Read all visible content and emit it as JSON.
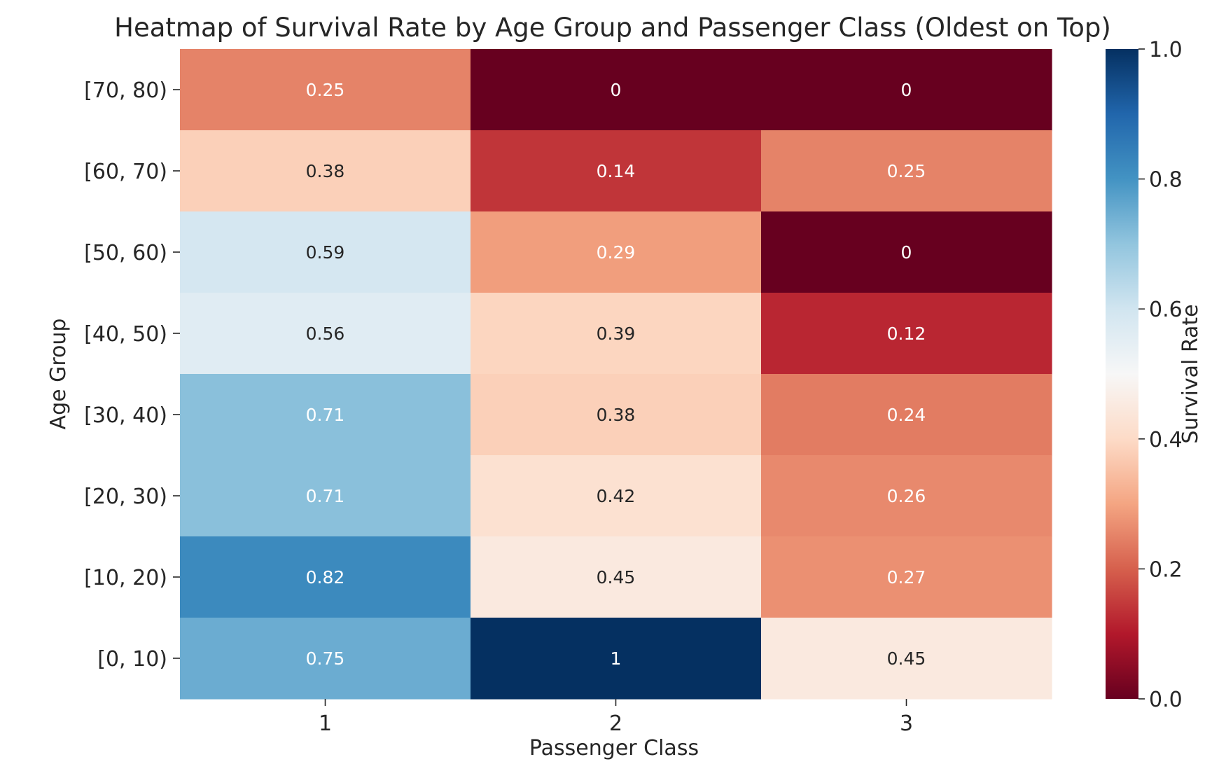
{
  "chart_data": {
    "type": "heatmap",
    "title": "Heatmap of Survival Rate by Age Group and Passenger Class (Oldest on Top)",
    "xlabel": "Passenger Class",
    "ylabel": "Age Group",
    "x_categories": [
      "1",
      "2",
      "3"
    ],
    "y_categories": [
      "[70, 80)",
      "[60, 70)",
      "[50, 60)",
      "[40, 50)",
      "[30, 40)",
      "[20, 30)",
      "[10, 20)",
      "[0, 10)"
    ],
    "values": [
      [
        0.25,
        0,
        0
      ],
      [
        0.38,
        0.14,
        0.25
      ],
      [
        0.59,
        0.29,
        0
      ],
      [
        0.56,
        0.39,
        0.12
      ],
      [
        0.71,
        0.38,
        0.24
      ],
      [
        0.71,
        0.42,
        0.26
      ],
      [
        0.82,
        0.45,
        0.27
      ],
      [
        0.75,
        1,
        0.45
      ]
    ],
    "colorbar": {
      "label": "Survival Rate",
      "range": [
        0,
        1
      ],
      "ticks": [
        "0.0",
        "0.2",
        "0.4",
        "0.6",
        "0.8",
        "1.0"
      ],
      "colormap": "RdBu"
    }
  }
}
